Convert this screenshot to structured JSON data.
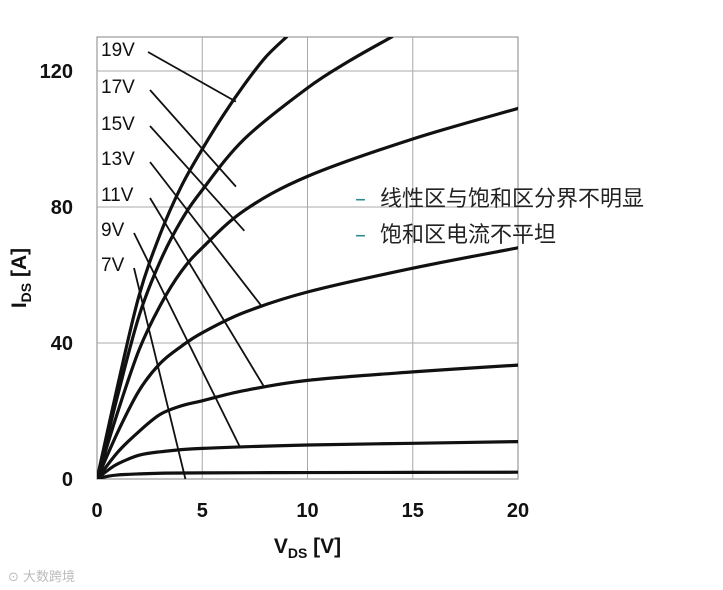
{
  "chart_data": {
    "type": "line",
    "xlabel": "V",
    "xlabel_sub": "DS",
    "xlabel_unit": "[V]",
    "ylabel": "I",
    "ylabel_sub": "DS",
    "ylabel_unit": "[A]",
    "xlim": [
      0,
      20
    ],
    "ylim": [
      0,
      130
    ],
    "xticks": [
      0,
      5,
      10,
      15,
      20
    ],
    "yticks": [
      0,
      40,
      80,
      120
    ],
    "grid": true,
    "legend": "none",
    "series": [
      {
        "name": "7V",
        "x": [
          0,
          0.5,
          1,
          2,
          3,
          5,
          10,
          15,
          20
        ],
        "y": [
          0,
          0.8,
          1.2,
          1.5,
          1.7,
          1.8,
          1.9,
          1.95,
          2
        ]
      },
      {
        "name": "9V",
        "x": [
          0,
          0.5,
          1,
          2,
          3,
          5,
          10,
          15,
          20
        ],
        "y": [
          0,
          2.5,
          4.5,
          7,
          8,
          9,
          10,
          10.5,
          11
        ]
      },
      {
        "name": "11V",
        "x": [
          0,
          1,
          2,
          3,
          4,
          5,
          7,
          10,
          15,
          20
        ],
        "y": [
          0,
          8,
          14,
          19,
          21.5,
          23,
          26,
          29,
          31.5,
          33.5
        ]
      },
      {
        "name": "13V",
        "x": [
          0,
          1,
          2,
          3,
          4,
          5,
          7,
          10,
          15,
          20
        ],
        "y": [
          0,
          14,
          26,
          34,
          39,
          43,
          49,
          55,
          62,
          68
        ]
      },
      {
        "name": "15V",
        "x": [
          0,
          1,
          2,
          3,
          4,
          5,
          7,
          10,
          15,
          20
        ],
        "y": [
          0,
          20,
          38,
          51,
          61,
          68,
          79,
          89,
          100,
          109
        ]
      },
      {
        "name": "17V",
        "x": [
          0,
          1,
          2,
          3,
          4,
          5,
          7,
          10,
          12,
          14
        ],
        "y": [
          0,
          25,
          48,
          64,
          76,
          85,
          100,
          115,
          123,
          130
        ]
      },
      {
        "name": "19V",
        "x": [
          0,
          1,
          2,
          3,
          4,
          5,
          6,
          7,
          8,
          9
        ],
        "y": [
          0,
          28,
          54,
          72,
          86,
          97,
          107,
          116,
          124,
          130
        ]
      }
    ],
    "annotations": [
      "19V",
      "17V",
      "15V",
      "13V",
      "11V",
      "9V",
      "7V"
    ]
  },
  "notes": [
    "线性区与饱和区分界不明显",
    "饱和区电流不平坦"
  ],
  "watermark": "大数跨境"
}
